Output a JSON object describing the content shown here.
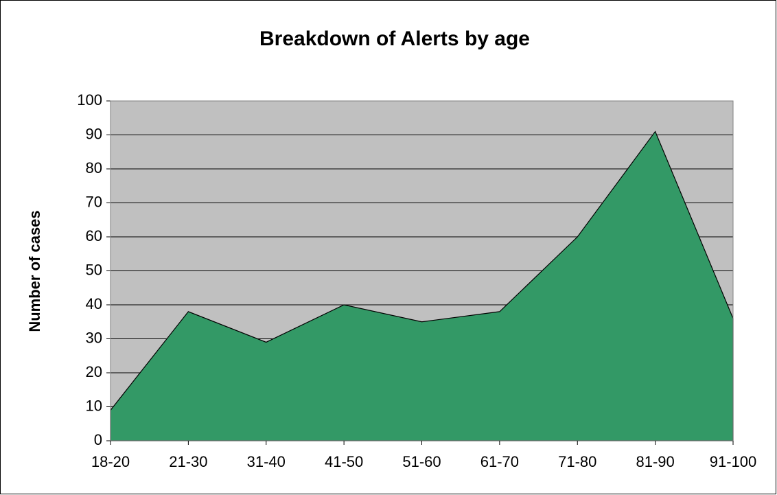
{
  "chart_data": {
    "type": "area",
    "title": "Breakdown of Alerts by age",
    "y_label": "Number of cases",
    "categories": [
      "18-20",
      "21-30",
      "31-40",
      "41-50",
      "51-60",
      "61-70",
      "71-80",
      "81-90",
      "91-100"
    ],
    "values": [
      9,
      38,
      29,
      40,
      35,
      38,
      60,
      91,
      36
    ],
    "color": "#339966",
    "ylim": [
      0,
      100
    ],
    "yticks": [
      0,
      10,
      20,
      30,
      40,
      50,
      60,
      70,
      80,
      90,
      100
    ],
    "grid": true
  }
}
